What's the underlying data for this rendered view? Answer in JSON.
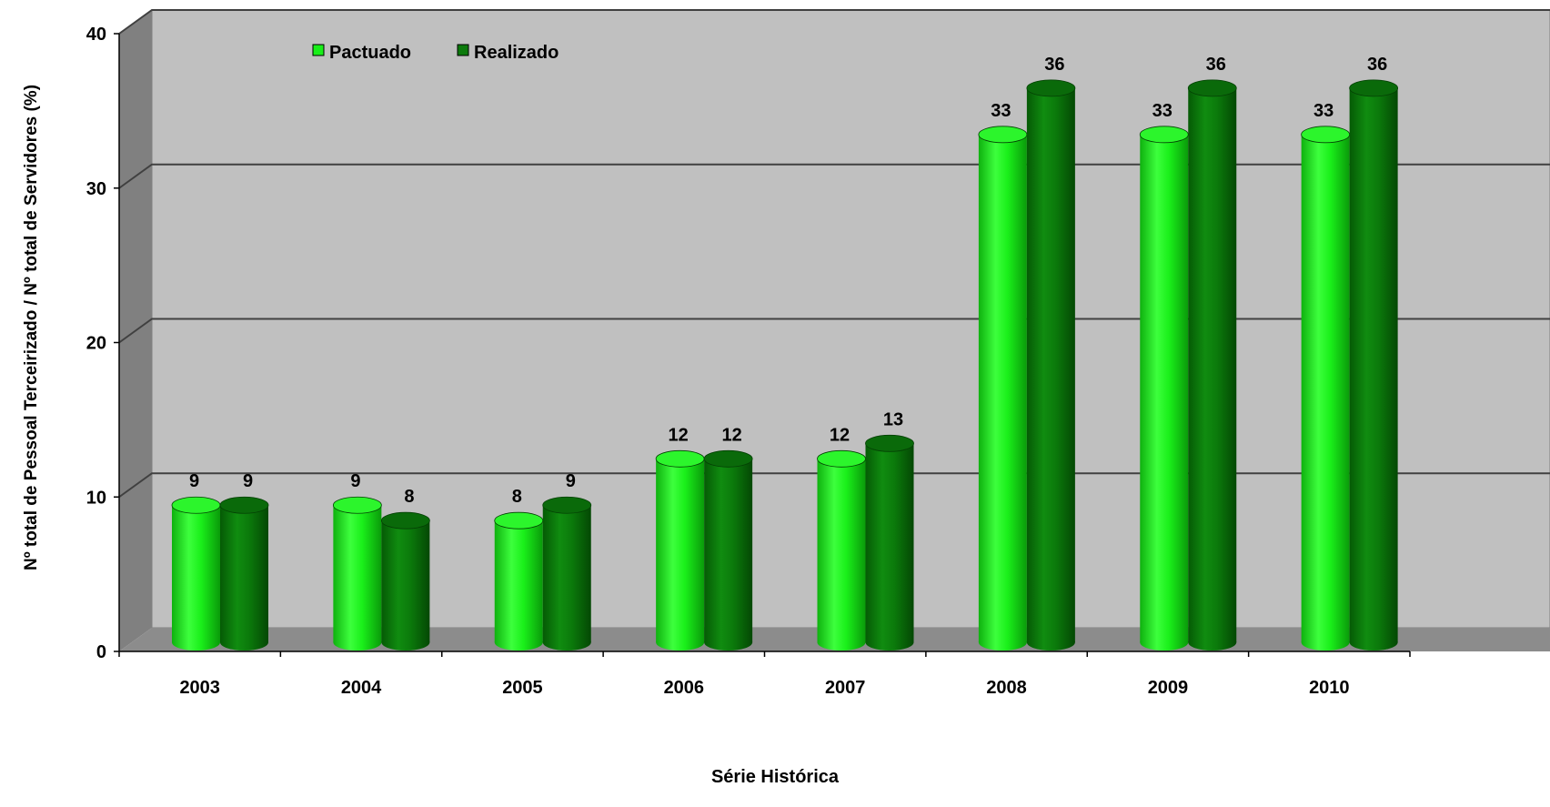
{
  "chart_data": {
    "type": "bar",
    "style": "3d-cylinder",
    "categories": [
      "2003",
      "2004",
      "2005",
      "2006",
      "2007",
      "2008",
      "2009",
      "2010"
    ],
    "series": [
      {
        "name": "Pactuado",
        "color": "#19ef19",
        "values": [
          9,
          9,
          8,
          12,
          12,
          33,
          33,
          33
        ]
      },
      {
        "name": "Realizado",
        "color": "#0c7a0c",
        "values": [
          9,
          8,
          9,
          12,
          13,
          36,
          36,
          36
        ]
      }
    ],
    "xlabel": "Série Histórica",
    "ylabel": "Nº total de Pessoal Terceirizado / Nº total de Servidores (%)",
    "ylim": [
      0,
      40
    ],
    "yticks": [
      0,
      10,
      20,
      30,
      40
    ],
    "grid": true,
    "legend_position": "top-left",
    "colors": {
      "wall": "#c0c0c0",
      "side_wall": "#808080",
      "floor": "#8c8c8c",
      "gridline": "#404040"
    }
  }
}
